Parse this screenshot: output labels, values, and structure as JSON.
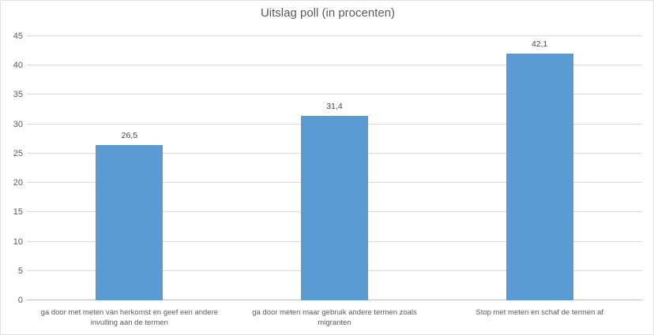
{
  "chart": {
    "title": "Uitslag poll (in procenten)"
  },
  "chart_data": {
    "type": "bar",
    "title": "Uitslag poll (in procenten)",
    "categories": [
      "ga door met meten van herkomst  en geef een andere invulling aan de termen",
      "ga door meten maar gebruik andere termen zoals migranten",
      "Stop met meten en schaf de termen af"
    ],
    "values": [
      26.5,
      31.4,
      42.1
    ],
    "value_labels": [
      "26,5",
      "31,4",
      "42,1"
    ],
    "xlabel": "",
    "ylabel": "",
    "ylim": [
      0,
      45
    ],
    "yticks": [
      0,
      5,
      10,
      15,
      20,
      25,
      30,
      35,
      40,
      45
    ],
    "grid": true,
    "legend": false,
    "bar_color": "#5b9bd5",
    "gridline_color": "#d9d9d9",
    "axis_line_color": "#bdbdbd",
    "text_color": "#595959"
  }
}
